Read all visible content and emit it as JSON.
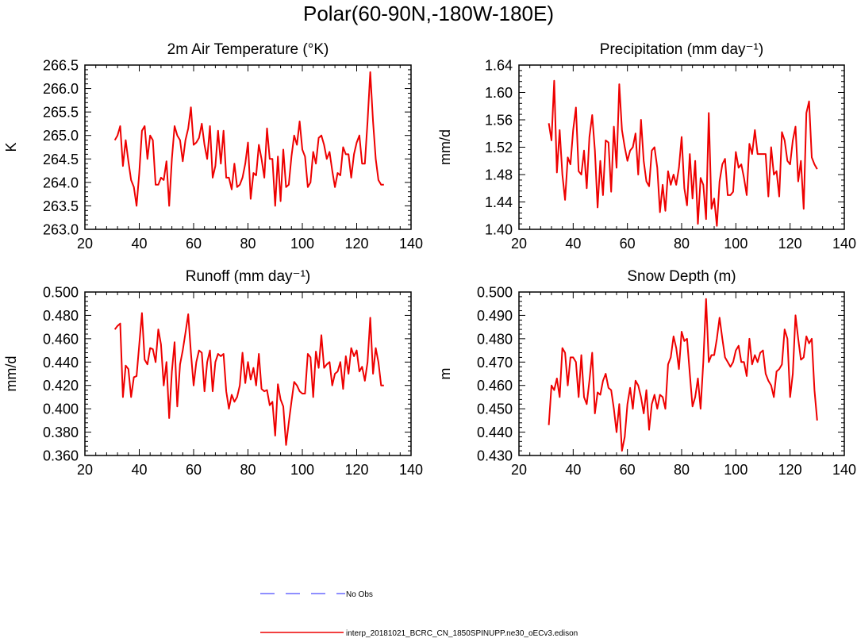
{
  "page": {
    "title": "Polar(60-90N,-180W-180E)"
  },
  "legend": {
    "obs_label": "No Obs",
    "model_label": "interp_20181021_BCRC_CN_1850SPINUPP.ne30_oECv3.edison",
    "obs_color": "#6a6aff",
    "model_color": "#ee0000"
  },
  "chart_data": [
    {
      "type": "line",
      "title": "2m Air Temperature (°K)",
      "ylabel": "K",
      "xlim": [
        20,
        140
      ],
      "ylim": [
        263.0,
        266.5
      ],
      "xticks": [
        20,
        40,
        60,
        80,
        100,
        120,
        140
      ],
      "yticks": [
        "263.0",
        "263.5",
        "264.0",
        "264.5",
        "265.0",
        "265.5",
        "266.0",
        "266.5"
      ],
      "series": [
        {
          "name": "model",
          "color": "#ee0000",
          "x_start": 31,
          "values": [
            264.9,
            265.0,
            265.2,
            264.35,
            264.9,
            264.45,
            264.05,
            263.9,
            263.5,
            264.2,
            265.1,
            265.2,
            264.5,
            265.0,
            264.9,
            263.95,
            263.95,
            264.1,
            264.05,
            264.45,
            263.5,
            264.5,
            265.2,
            265.0,
            264.9,
            264.45,
            264.9,
            265.15,
            265.6,
            264.8,
            264.85,
            264.95,
            265.25,
            264.8,
            264.5,
            265.2,
            264.1,
            264.35,
            265.1,
            264.4,
            265.1,
            264.1,
            264.1,
            263.85,
            264.4,
            263.9,
            263.95,
            264.1,
            264.4,
            264.85,
            263.65,
            264.2,
            264.15,
            264.8,
            264.5,
            264.1,
            265.15,
            264.5,
            264.5,
            263.5,
            264.55,
            263.6,
            264.7,
            263.9,
            263.95,
            264.55,
            265.0,
            264.8,
            265.3,
            264.7,
            264.55,
            263.9,
            264.0,
            264.65,
            264.4,
            264.95,
            265.0,
            264.8,
            264.5,
            264.65,
            264.25,
            263.9,
            264.2,
            264.15,
            264.75,
            264.6,
            264.6,
            264.1,
            264.6,
            264.85,
            265.0,
            264.4,
            264.4,
            265.3,
            266.35,
            265.3,
            264.5,
            264.05,
            263.95,
            263.95
          ]
        }
      ]
    },
    {
      "type": "line",
      "title": "Precipitation (mm day⁻¹)",
      "ylabel": "mm/d",
      "xlim": [
        20,
        140
      ],
      "ylim": [
        1.4,
        1.64
      ],
      "xticks": [
        20,
        40,
        60,
        80,
        100,
        120,
        140
      ],
      "yticks": [
        "1.40",
        "1.44",
        "1.48",
        "1.52",
        "1.56",
        "1.60",
        "1.64"
      ],
      "series": [
        {
          "name": "model",
          "color": "#ee0000",
          "x_start": 31,
          "values": [
            1.555,
            1.53,
            1.617,
            1.483,
            1.545,
            1.48,
            1.443,
            1.505,
            1.495,
            1.545,
            1.578,
            1.485,
            1.48,
            1.515,
            1.46,
            1.535,
            1.567,
            1.515,
            1.432,
            1.5,
            1.45,
            1.53,
            1.527,
            1.455,
            1.55,
            1.49,
            1.612,
            1.545,
            1.52,
            1.5,
            1.515,
            1.52,
            1.54,
            1.48,
            1.56,
            1.5,
            1.47,
            1.463,
            1.515,
            1.52,
            1.49,
            1.425,
            1.465,
            1.427,
            1.485,
            1.465,
            1.48,
            1.465,
            1.49,
            1.535,
            1.46,
            1.435,
            1.51,
            1.445,
            1.5,
            1.408,
            1.475,
            1.465,
            1.415,
            1.57,
            1.43,
            1.445,
            1.405,
            1.47,
            1.495,
            1.503,
            1.45,
            1.45,
            1.455,
            1.513,
            1.49,
            1.495,
            1.475,
            1.45,
            1.525,
            1.51,
            1.545,
            1.51,
            1.51,
            1.51,
            1.51,
            1.448,
            1.52,
            1.48,
            1.485,
            1.448,
            1.542,
            1.53,
            1.5,
            1.495,
            1.53,
            1.55,
            1.47,
            1.5,
            1.43,
            1.57,
            1.587,
            1.505,
            1.495,
            1.488
          ]
        }
      ]
    },
    {
      "type": "line",
      "title": "Runoff (mm day⁻¹)",
      "ylabel": "mm/d",
      "xlim": [
        20,
        140
      ],
      "ylim": [
        0.36,
        0.5
      ],
      "xticks": [
        20,
        40,
        60,
        80,
        100,
        120,
        140
      ],
      "yticks": [
        "0.360",
        "0.380",
        "0.400",
        "0.420",
        "0.440",
        "0.460",
        "0.480",
        "0.500"
      ],
      "series": [
        {
          "name": "model",
          "color": "#ee0000",
          "x_start": 31,
          "values": [
            0.468,
            0.471,
            0.473,
            0.41,
            0.437,
            0.434,
            0.41,
            0.427,
            0.428,
            0.455,
            0.482,
            0.442,
            0.438,
            0.452,
            0.451,
            0.44,
            0.468,
            0.455,
            0.42,
            0.44,
            0.392,
            0.432,
            0.457,
            0.402,
            0.438,
            0.45,
            0.465,
            0.481,
            0.448,
            0.42,
            0.44,
            0.45,
            0.448,
            0.415,
            0.44,
            0.45,
            0.415,
            0.44,
            0.447,
            0.445,
            0.447,
            0.415,
            0.4,
            0.412,
            0.406,
            0.41,
            0.42,
            0.448,
            0.422,
            0.44,
            0.425,
            0.435,
            0.42,
            0.447,
            0.417,
            0.415,
            0.416,
            0.403,
            0.406,
            0.377,
            0.421,
            0.408,
            0.402,
            0.369,
            0.388,
            0.406,
            0.423,
            0.42,
            0.415,
            0.413,
            0.413,
            0.447,
            0.444,
            0.41,
            0.449,
            0.435,
            0.463,
            0.435,
            0.438,
            0.44,
            0.42,
            0.43,
            0.432,
            0.44,
            0.417,
            0.445,
            0.43,
            0.452,
            0.445,
            0.45,
            0.432,
            0.436,
            0.424,
            0.44,
            0.478,
            0.43,
            0.452,
            0.44,
            0.42,
            0.42
          ]
        }
      ]
    },
    {
      "type": "line",
      "title": "Snow Depth (m)",
      "ylabel": "m",
      "xlim": [
        20,
        140
      ],
      "ylim": [
        0.43,
        0.5
      ],
      "xticks": [
        20,
        40,
        60,
        80,
        100,
        120,
        140
      ],
      "yticks": [
        "0.430",
        "0.440",
        "0.450",
        "0.460",
        "0.470",
        "0.480",
        "0.490",
        "0.500"
      ],
      "series": [
        {
          "name": "model",
          "color": "#ee0000",
          "x_start": 31,
          "values": [
            0.443,
            0.46,
            0.458,
            0.463,
            0.455,
            0.476,
            0.474,
            0.46,
            0.472,
            0.472,
            0.47,
            0.455,
            0.473,
            0.455,
            0.452,
            0.462,
            0.474,
            0.448,
            0.457,
            0.456,
            0.462,
            0.465,
            0.459,
            0.458,
            0.45,
            0.44,
            0.452,
            0.432,
            0.438,
            0.452,
            0.459,
            0.45,
            0.462,
            0.46,
            0.455,
            0.448,
            0.458,
            0.441,
            0.452,
            0.456,
            0.45,
            0.456,
            0.455,
            0.45,
            0.469,
            0.472,
            0.481,
            0.476,
            0.467,
            0.483,
            0.479,
            0.48,
            0.465,
            0.451,
            0.455,
            0.463,
            0.45,
            0.47,
            0.497,
            0.47,
            0.473,
            0.473,
            0.48,
            0.489,
            0.48,
            0.472,
            0.47,
            0.468,
            0.47,
            0.475,
            0.477,
            0.47,
            0.47,
            0.464,
            0.48,
            0.469,
            0.473,
            0.47,
            0.474,
            0.475,
            0.465,
            0.462,
            0.46,
            0.455,
            0.466,
            0.467,
            0.469,
            0.484,
            0.48,
            0.455,
            0.465,
            0.49,
            0.48,
            0.471,
            0.472,
            0.481,
            0.478,
            0.48,
            0.458,
            0.445
          ]
        }
      ]
    }
  ]
}
